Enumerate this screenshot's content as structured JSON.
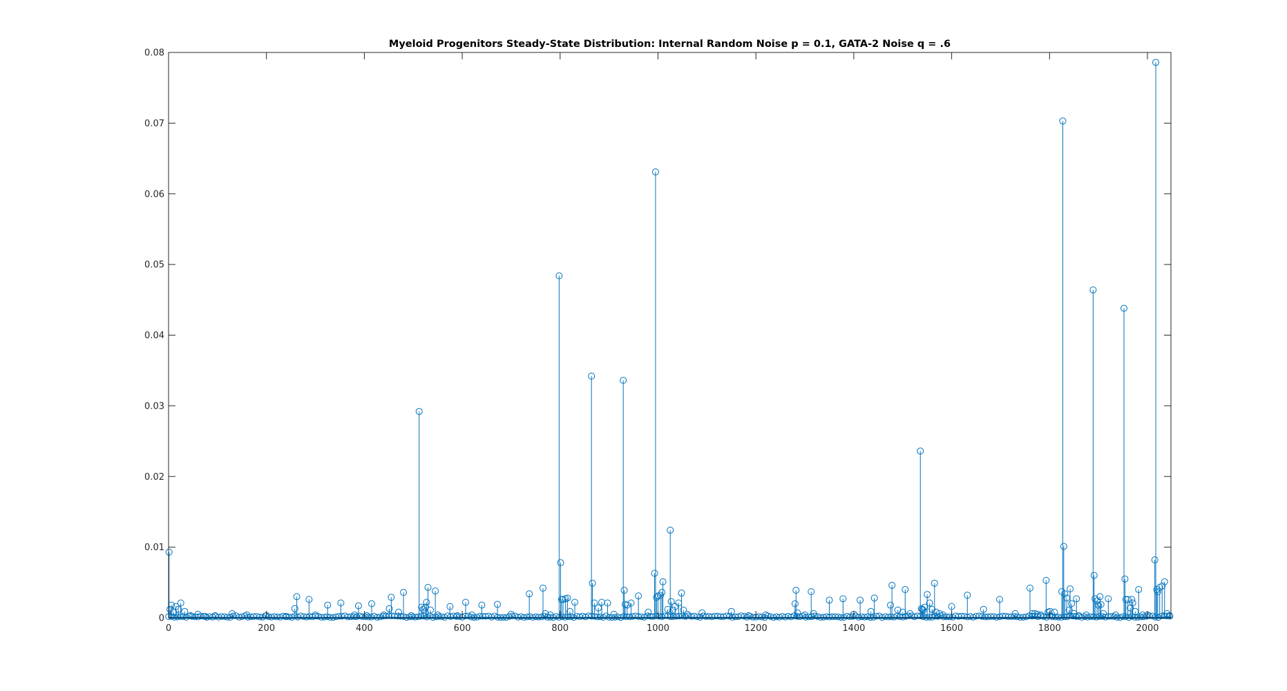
{
  "chart_data": {
    "type": "stem",
    "title": "Myeloid Progenitors Steady-State Distribution: Internal Random Noise p = 0.1, GATA-2 Noise q = .6",
    "xlabel": "",
    "ylabel": "",
    "xlim": [
      0,
      2048
    ],
    "ylim": [
      0,
      0.08
    ],
    "xticks": [
      0,
      200,
      400,
      600,
      800,
      1000,
      1200,
      1400,
      1600,
      1800,
      2000
    ],
    "yticks": [
      0,
      0.01,
      0.02,
      0.03,
      0.04,
      0.05,
      0.06,
      0.07,
      0.08
    ],
    "xtick_labels": [
      "0",
      "200",
      "400",
      "600",
      "800",
      "1000",
      "1200",
      "1400",
      "1600",
      "1800",
      "2000"
    ],
    "ytick_labels": [
      "0",
      "0.01",
      "0.02",
      "0.03",
      "0.04",
      "0.05",
      "0.06",
      "0.07",
      "0.08"
    ],
    "grid": false,
    "color": "#0072BD",
    "series": [
      {
        "x": [
          1,
          3,
          6,
          10,
          15,
          20,
          25,
          33,
          45,
          60,
          75,
          95,
          130,
          160,
          200,
          240,
          258,
          262,
          287,
          300,
          325,
          352,
          380,
          388,
          405,
          415,
          440,
          451,
          455,
          470,
          480,
          496,
          512,
          517,
          520,
          525,
          527,
          530,
          535,
          545,
          550,
          575,
          590,
          607,
          620,
          640,
          672,
          700,
          737,
          765,
          770,
          780,
          798,
          801,
          803,
          806,
          811,
          815,
          820,
          830,
          864,
          866,
          870,
          878,
          885,
          897,
          910,
          929,
          931,
          933,
          937,
          945,
          960,
          980,
          993,
          995,
          997,
          1000,
          1005,
          1008,
          1010,
          1020,
          1025,
          1027,
          1030,
          1035,
          1042,
          1048,
          1052,
          1060,
          1090,
          1150,
          1185,
          1220,
          1280,
          1282,
          1285,
          1300,
          1313,
          1318,
          1350,
          1378,
          1400,
          1413,
          1435,
          1442,
          1475,
          1478,
          1490,
          1500,
          1505,
          1515,
          1536,
          1538,
          1540,
          1542,
          1545,
          1550,
          1555,
          1560,
          1565,
          1568,
          1575,
          1582,
          1600,
          1632,
          1665,
          1698,
          1730,
          1760,
          1765,
          1770,
          1775,
          1782,
          1793,
          1797,
          1801,
          1810,
          1825,
          1827,
          1829,
          1831,
          1835,
          1840,
          1842,
          1845,
          1850,
          1855,
          1860,
          1875,
          1889,
          1891,
          1893,
          1897,
          1900,
          1903,
          1905,
          1910,
          1920,
          1935,
          1952,
          1954,
          1956,
          1960,
          1965,
          1968,
          1970,
          1975,
          1982,
          1990,
          2000,
          2015,
          2017,
          2019,
          2021,
          2025,
          2030,
          2035,
          2040,
          2045
        ],
        "y": [
          0.0093,
          0.0012,
          0.0018,
          0.0008,
          0.0016,
          0.0012,
          0.0021,
          0.0009,
          0.0003,
          0.0005,
          0.0002,
          0.0003,
          0.0006,
          0.0004,
          0.0003,
          0.0002,
          0.0013,
          0.003,
          0.0026,
          0.0004,
          0.0018,
          0.0021,
          0.0004,
          0.0017,
          0.0003,
          0.002,
          0.0004,
          0.0013,
          0.0029,
          0.0008,
          0.0036,
          0.0003,
          0.0292,
          0.0015,
          0.0012,
          0.0015,
          0.0022,
          0.0043,
          0.0011,
          0.0038,
          0.0004,
          0.0016,
          0.0003,
          0.0022,
          0.0004,
          0.0018,
          0.0019,
          0.0005,
          0.0034,
          0.0042,
          0.0006,
          0.0004,
          0.0484,
          0.0078,
          0.0026,
          0.0026,
          0.0027,
          0.0028,
          0.0009,
          0.0022,
          0.0342,
          0.0049,
          0.0021,
          0.0014,
          0.0022,
          0.0021,
          0.0005,
          0.0336,
          0.0039,
          0.0019,
          0.0018,
          0.0021,
          0.0031,
          0.0008,
          0.0063,
          0.0631,
          0.0029,
          0.0031,
          0.0032,
          0.0036,
          0.0051,
          0.0012,
          0.0124,
          0.0023,
          0.0011,
          0.0016,
          0.0021,
          0.0035,
          0.0011,
          0.0005,
          0.0007,
          0.0009,
          0.0003,
          0.0004,
          0.002,
          0.0039,
          0.0007,
          0.0004,
          0.0037,
          0.0006,
          0.0025,
          0.0027,
          0.0005,
          0.0025,
          0.0009,
          0.0028,
          0.0018,
          0.0046,
          0.0011,
          0.0008,
          0.004,
          0.0006,
          0.0236,
          0.0013,
          0.0012,
          0.0011,
          0.0015,
          0.0033,
          0.0021,
          0.0012,
          0.0049,
          0.0008,
          0.0006,
          0.0004,
          0.0016,
          0.0032,
          0.0012,
          0.0026,
          0.0006,
          0.0042,
          0.0006,
          0.0006,
          0.0005,
          0.0004,
          0.0053,
          0.0008,
          0.0009,
          0.0008,
          0.0037,
          0.0703,
          0.0101,
          0.0034,
          0.0028,
          0.0011,
          0.0041,
          0.002,
          0.0006,
          0.0027,
          0.0003,
          0.0004,
          0.0464,
          0.006,
          0.0027,
          0.0024,
          0.0018,
          0.003,
          0.0019,
          0.0006,
          0.0027,
          0.0004,
          0.0438,
          0.0055,
          0.0026,
          0.0026,
          0.0014,
          0.0026,
          0.0021,
          0.0009,
          0.004,
          0.0004,
          0.0004,
          0.0082,
          0.0786,
          0.004,
          0.0037,
          0.0043,
          0.0045,
          0.0051,
          0.0006,
          0.0003
        ]
      }
    ]
  }
}
